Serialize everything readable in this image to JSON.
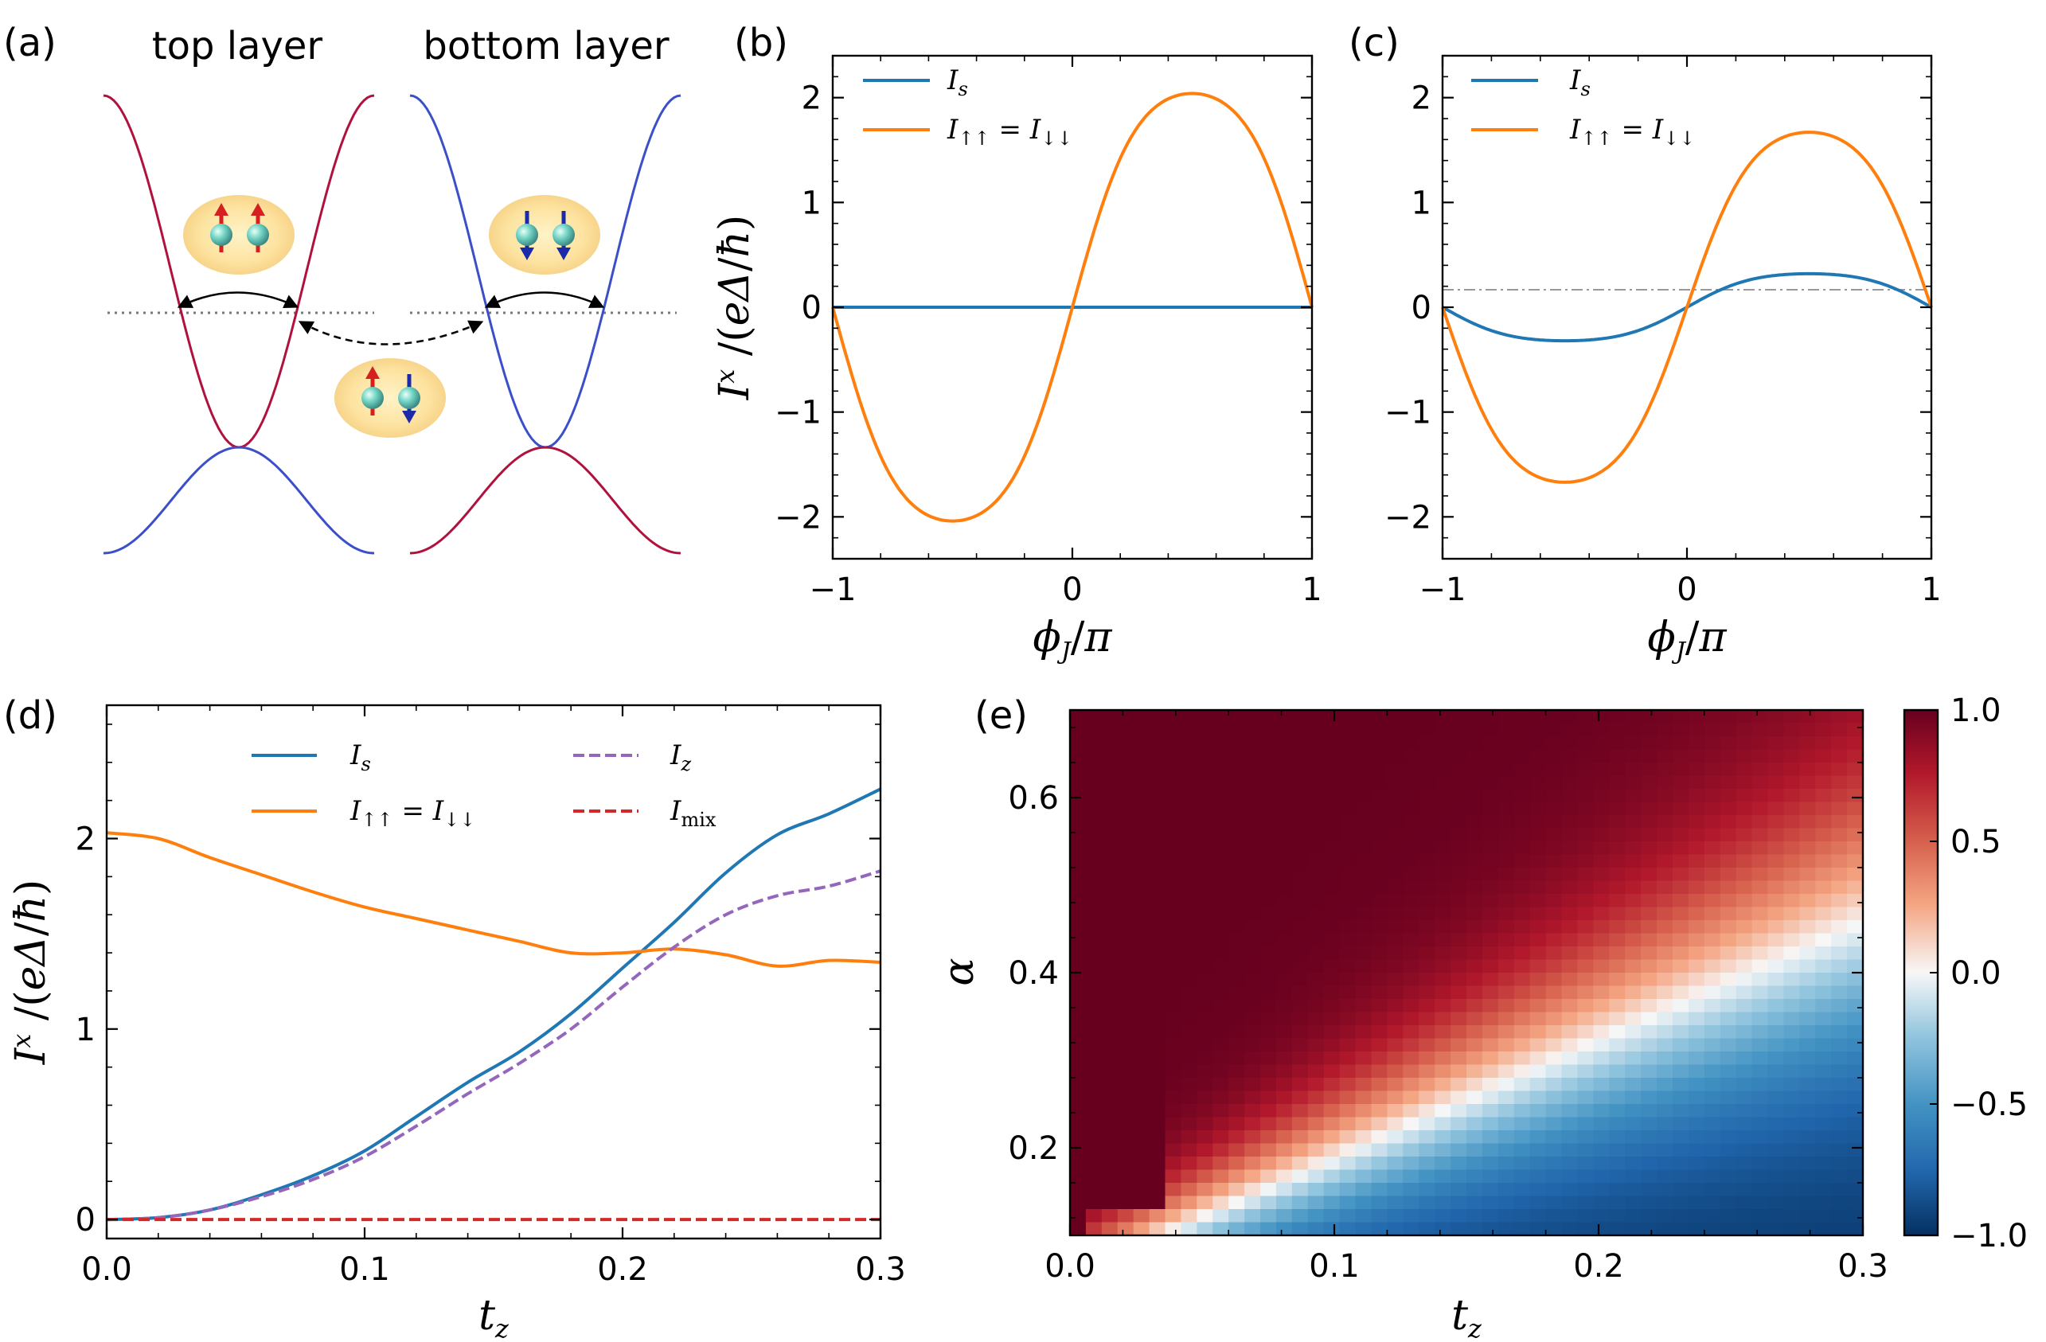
{
  "colors": {
    "blue": "#1f77b4",
    "orange": "#ff7f0e",
    "purple": "#9467bd",
    "red": "#d62728",
    "band_red": "#b0123e",
    "band_blue": "#3a4fc8"
  },
  "panel_a": {
    "label": "(a)",
    "top_layer": "top layer",
    "bottom_layer": "bottom layer"
  },
  "ylabel_common": "Iˣ /(eΔ/ħ)",
  "chart_data": [
    {
      "panel": "(b)",
      "type": "line",
      "xlabel": "ϕ_J/π",
      "ylabel": "I^x /(eΔ/ħ)",
      "xlim": [
        -1,
        1
      ],
      "ylim": [
        -2.4,
        2.4
      ],
      "xticks": [
        "−1",
        "0",
        "1"
      ],
      "yticks": [
        "−2",
        "−1",
        "0",
        "1",
        "2"
      ],
      "legend": [
        "I_s",
        "I_↑↑ = I_↓↓"
      ],
      "series": [
        {
          "name": "I_s",
          "color": "blue",
          "amplitude": 0.0,
          "shape": "sin"
        },
        {
          "name": "I_↑↑ = I_↓↓",
          "color": "orange",
          "amplitude": 2.04,
          "shape": "sin"
        }
      ]
    },
    {
      "panel": "(c)",
      "type": "line",
      "xlabel": "ϕ_J/π",
      "ylabel": "",
      "xlim": [
        -1,
        1
      ],
      "ylim": [
        -2.4,
        2.4
      ],
      "xticks": [
        "−1",
        "0",
        "1"
      ],
      "yticks": [
        "−2",
        "−1",
        "0",
        "1",
        "2"
      ],
      "legend": [
        "I_s",
        "I_↑↑ = I_↓↓"
      ],
      "series": [
        {
          "name": "I_s",
          "color": "blue",
          "amplitude": 0.32,
          "shape": "sin"
        },
        {
          "name": "I_↑↑ = I_↓↓",
          "color": "orange",
          "amplitude": 1.67,
          "shape": "sin"
        }
      ]
    },
    {
      "panel": "(d)",
      "type": "line",
      "xlabel": "t_z",
      "ylabel": "I^x /(eΔ/ħ)",
      "xlim": [
        0,
        0.3
      ],
      "ylim": [
        -0.1,
        2.7
      ],
      "xticks": [
        "0.0",
        "0.1",
        "0.2",
        "0.3"
      ],
      "yticks": [
        "0",
        "1",
        "2"
      ],
      "x": [
        0.0,
        0.02,
        0.04,
        0.06,
        0.08,
        0.1,
        0.12,
        0.14,
        0.16,
        0.18,
        0.2,
        0.22,
        0.24,
        0.26,
        0.28,
        0.3
      ],
      "series": [
        {
          "name": "I_s",
          "color": "blue",
          "dash": false,
          "values": [
            0.0,
            0.01,
            0.05,
            0.13,
            0.23,
            0.36,
            0.54,
            0.72,
            0.88,
            1.08,
            1.32,
            1.56,
            1.82,
            2.02,
            2.13,
            2.26
          ]
        },
        {
          "name": "I_↑↑ = I_↓↓",
          "color": "orange",
          "dash": false,
          "values": [
            2.03,
            2.0,
            1.9,
            1.81,
            1.72,
            1.64,
            1.58,
            1.52,
            1.46,
            1.4,
            1.4,
            1.42,
            1.39,
            1.33,
            1.36,
            1.35
          ]
        },
        {
          "name": "I_z",
          "color": "purple",
          "dash": true,
          "values": [
            0.0,
            0.01,
            0.05,
            0.12,
            0.21,
            0.33,
            0.49,
            0.66,
            0.82,
            1.0,
            1.22,
            1.43,
            1.6,
            1.7,
            1.75,
            1.83
          ]
        },
        {
          "name": "I_mix",
          "color": "red",
          "dash": true,
          "values": [
            0.0,
            0.0,
            0.0,
            0.0,
            0.0,
            0.0,
            0.0,
            0.0,
            0.0,
            0.0,
            0.0,
            0.0,
            0.0,
            0.0,
            0.0,
            0.0
          ]
        }
      ]
    },
    {
      "panel": "(e)",
      "type": "heatmap",
      "xlabel": "t_z",
      "ylabel": "α",
      "xlim": [
        0,
        0.3
      ],
      "ylim": [
        0.1,
        0.7
      ],
      "xticks": [
        "0.0",
        "0.1",
        "0.2",
        "0.3"
      ],
      "yticks": [
        "0.2",
        "0.4",
        "0.6"
      ],
      "colorbar": {
        "min": -1.0,
        "max": 1.0,
        "ticks": [
          "1.0",
          "0.5",
          "0.0",
          "−0.5",
          "−1.0"
        ]
      },
      "grid_cols": 50,
      "grid_rows": 40,
      "description_rule": "value ≈ diagonal from (t_z=0.04, α=0.1) to (t_z=0.3, α=0.45) separates +1 (upper-left) from −1 (lower-right)"
    }
  ]
}
